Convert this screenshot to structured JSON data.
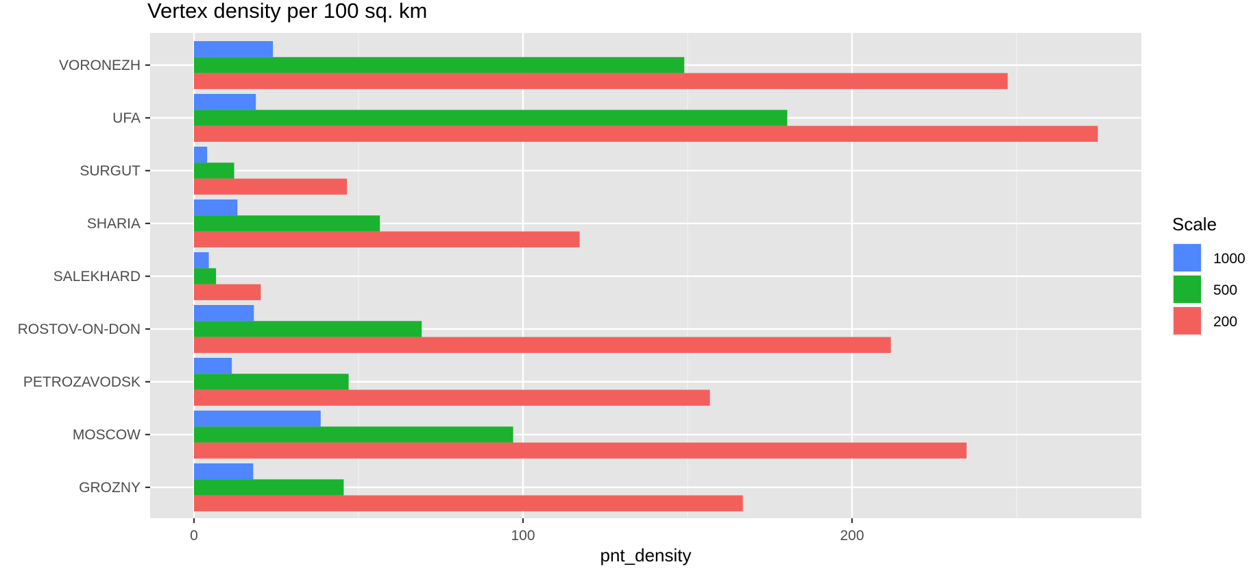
{
  "chart_data": {
    "type": "bar",
    "orientation": "horizontal",
    "title": "Vertex density per 100 sq. km",
    "xlabel": "pnt_density",
    "ylabel": "",
    "xlim": [
      -13.5,
      288
    ],
    "x_ticks": [
      0,
      100,
      200
    ],
    "x_minor_ticks": [
      50,
      150,
      250
    ],
    "grid": true,
    "legend": {
      "title": "Scale",
      "position": "right"
    },
    "categories": [
      "GROZNY",
      "MOSCOW",
      "PETROZAVODSK",
      "ROSTOV-ON-DON",
      "SALEKHARD",
      "SHARIA",
      "SURGUT",
      "UFA",
      "VORONEZH"
    ],
    "series": [
      {
        "name": "1000",
        "color": "#5086FF",
        "values": [
          18,
          38.5,
          11.5,
          18.2,
          4.5,
          13.2,
          4,
          18.8,
          24
        ]
      },
      {
        "name": "500",
        "color": "#1AB22E",
        "values": [
          45.5,
          97,
          47,
          69.2,
          6.7,
          56.5,
          12.2,
          180.3,
          149
        ]
      },
      {
        "name": "200",
        "color": "#F3605C",
        "values": [
          166.8,
          234.8,
          156.8,
          211.8,
          20.3,
          117.2,
          46.5,
          274.7,
          247.3
        ]
      }
    ]
  },
  "colors": {
    "panel_background": "#E5E5E5",
    "grid_major": "#FFFFFF",
    "grid_minor": "#F2F2F2",
    "tick_text": "#4D4D4D"
  }
}
